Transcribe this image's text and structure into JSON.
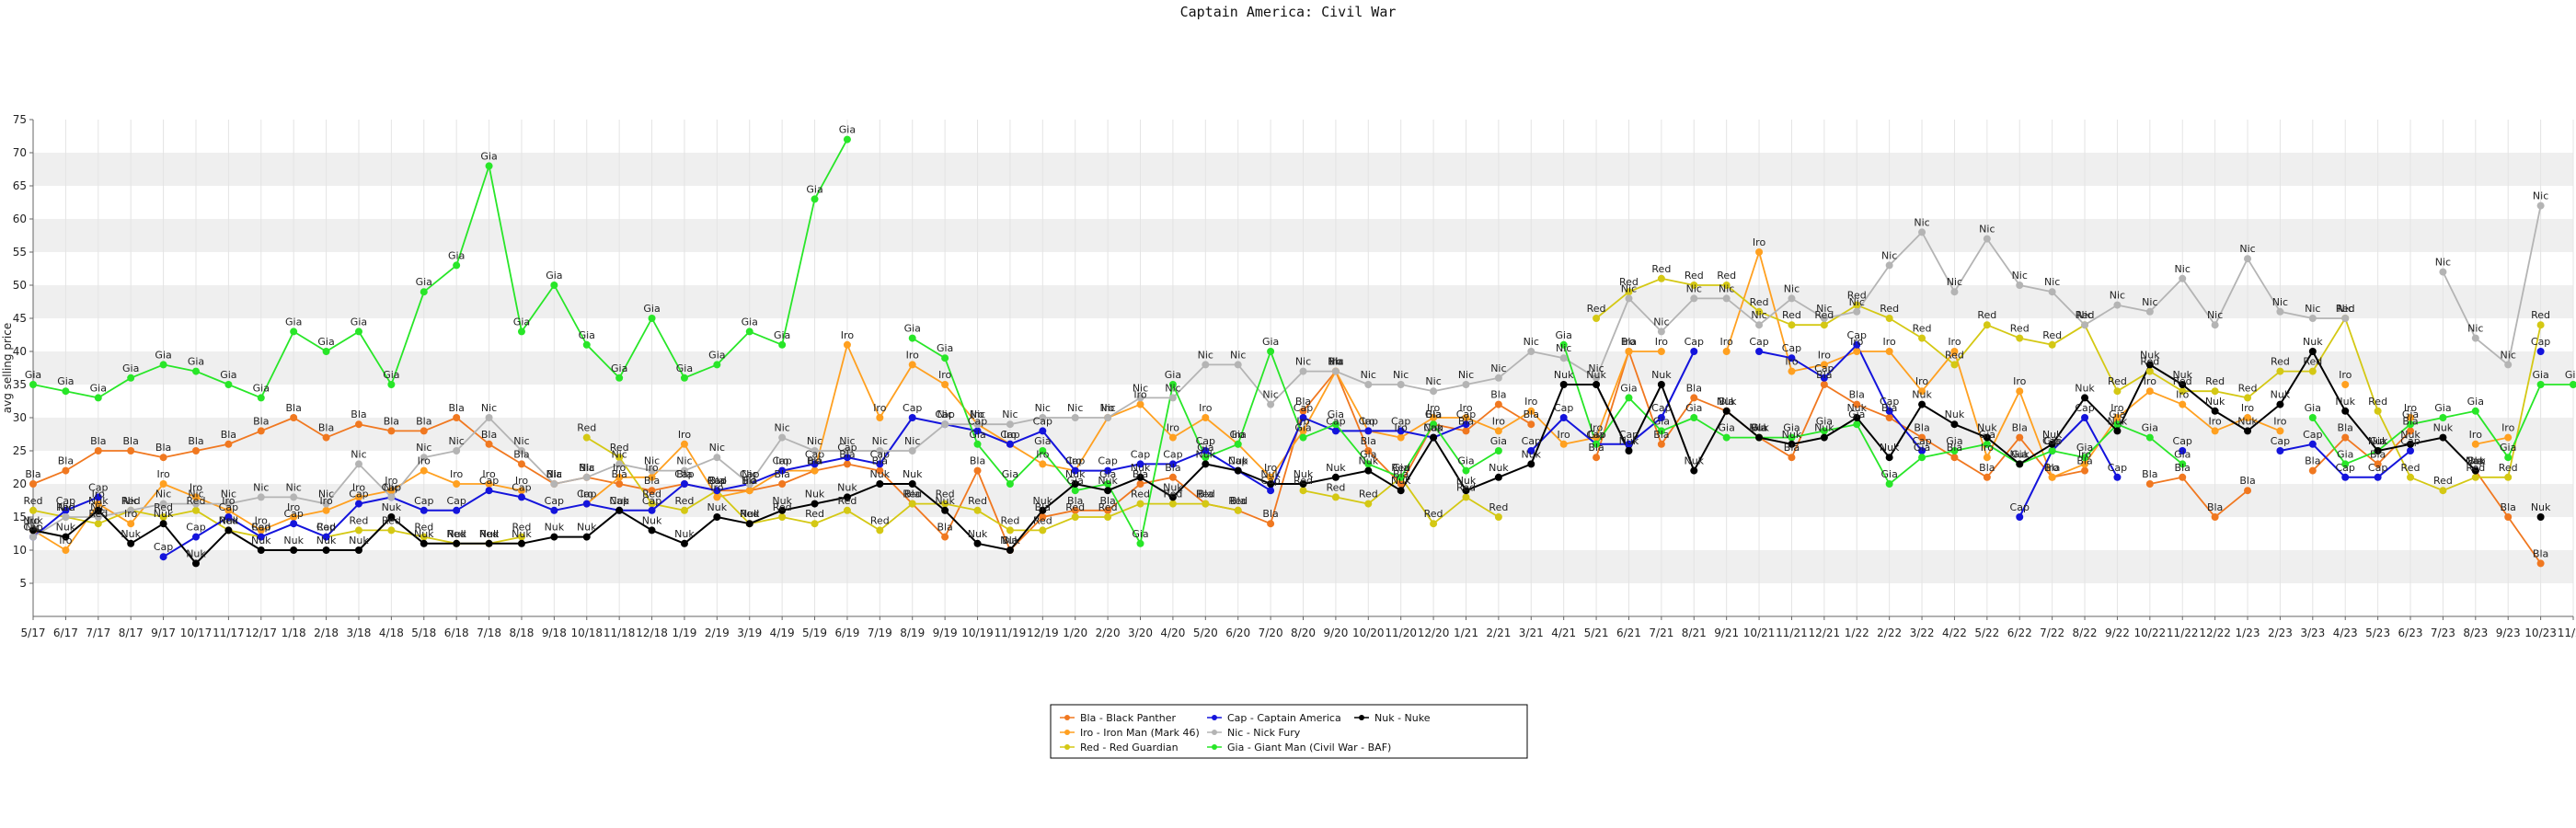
{
  "chart_data": {
    "type": "line",
    "title": "Captain America: Civil War",
    "ylabel": "avg selling price",
    "xlabel": "",
    "ylim": [
      0,
      75
    ],
    "yticks": [
      5,
      10,
      15,
      20,
      25,
      30,
      35,
      40,
      45,
      50,
      55,
      60,
      65,
      70,
      75
    ],
    "grid": "horizontal bands",
    "legend_position": "bottom-center",
    "x": [
      "5/17",
      "6/17",
      "7/17",
      "8/17",
      "9/17",
      "10/17",
      "11/17",
      "12/17",
      "1/18",
      "2/18",
      "3/18",
      "4/18",
      "5/18",
      "6/18",
      "7/18",
      "8/18",
      "9/18",
      "10/18",
      "11/18",
      "12/18",
      "1/19",
      "2/19",
      "3/19",
      "4/19",
      "5/19",
      "6/19",
      "7/19",
      "8/19",
      "9/19",
      "10/19",
      "11/19",
      "12/19",
      "1/20",
      "2/20",
      "3/20",
      "4/20",
      "5/20",
      "6/20",
      "7/20",
      "8/20",
      "9/20",
      "10/20",
      "11/20",
      "12/20",
      "1/21",
      "2/21",
      "3/21",
      "4/21",
      "5/21",
      "6/21",
      "7/21",
      "8/21",
      "9/21",
      "10/21",
      "11/21",
      "12/21",
      "1/22",
      "2/22",
      "3/22",
      "4/22",
      "5/22",
      "6/22",
      "7/22",
      "8/22",
      "9/22",
      "10/22",
      "11/22",
      "12/22",
      "1/23",
      "2/23",
      "3/23",
      "4/23",
      "5/23",
      "6/23",
      "7/23",
      "8/23",
      "9/23",
      "10/23",
      "11/23"
    ],
    "series": [
      {
        "short": "Bla",
        "name": "Bla - Black Panther",
        "color": "#f07820",
        "values": [
          20,
          22,
          25,
          25,
          24,
          25,
          26,
          28,
          30,
          27,
          29,
          28,
          28,
          30,
          26,
          23,
          20,
          21,
          20,
          19,
          20,
          19,
          19,
          20,
          22,
          23,
          22,
          17,
          12,
          22,
          10,
          15,
          16,
          16,
          20,
          21,
          17,
          16,
          14,
          31,
          37,
          25,
          20,
          29,
          28,
          32,
          29,
          null,
          24,
          40,
          26,
          33,
          31,
          27,
          24,
          35,
          32,
          30,
          27,
          24,
          21,
          27,
          21,
          22,
          null,
          20,
          21,
          15,
          19,
          null,
          22,
          27,
          23,
          28,
          null,
          22,
          15,
          8,
          null
        ]
      },
      {
        "short": "Iro",
        "name": "Iro - Iron Man (Mark 46)",
        "color": "#ffa020",
        "values": [
          13,
          10,
          17,
          14,
          20,
          18,
          16,
          13,
          15,
          16,
          18,
          19,
          22,
          20,
          20,
          19,
          null,
          17,
          21,
          21,
          26,
          18,
          19,
          22,
          22,
          41,
          30,
          38,
          35,
          29,
          26,
          23,
          22,
          30,
          32,
          27,
          30,
          26,
          21,
          28,
          37,
          28,
          27,
          30,
          30,
          28,
          31,
          26,
          27,
          40,
          40,
          null,
          40,
          55,
          37,
          38,
          40,
          40,
          34,
          40,
          24,
          34,
          21,
          23,
          30,
          34,
          32,
          28,
          30,
          28,
          null,
          35,
          null,
          30,
          null,
          26,
          27,
          null,
          null
        ]
      },
      {
        "short": "Red",
        "name": "Red - Red Guardian",
        "color": "#d4c814",
        "values": [
          16,
          15,
          14,
          16,
          15,
          16,
          13,
          12,
          null,
          12,
          13,
          13,
          12,
          11,
          11,
          12,
          null,
          27,
          24,
          17,
          16,
          19,
          14,
          15,
          14,
          16,
          13,
          17,
          17,
          16,
          13,
          13,
          15,
          15,
          17,
          17,
          17,
          16,
          null,
          19,
          18,
          17,
          21,
          14,
          18,
          15,
          null,
          null,
          45,
          49,
          51,
          50,
          50,
          46,
          44,
          44,
          47,
          45,
          42,
          38,
          44,
          42,
          41,
          44,
          34,
          37,
          34,
          34,
          33,
          37,
          37,
          45,
          31,
          21,
          19,
          21,
          21,
          44,
          null
        ]
      },
      {
        "short": "Cap",
        "name": "Cap - Captain America",
        "color": "#1414dc",
        "values": [
          12,
          16,
          18,
          null,
          9,
          12,
          15,
          12,
          14,
          12,
          17,
          18,
          16,
          16,
          19,
          18,
          16,
          17,
          16,
          16,
          20,
          19,
          20,
          22,
          23,
          24,
          23,
          30,
          29,
          28,
          26,
          28,
          22,
          22,
          23,
          23,
          25,
          22,
          19,
          30,
          28,
          28,
          28,
          27,
          29,
          null,
          25,
          30,
          26,
          26,
          30,
          40,
          null,
          40,
          39,
          36,
          41,
          31,
          25,
          null,
          null,
          15,
          25,
          30,
          21,
          null,
          25,
          null,
          null,
          25,
          26,
          21,
          21,
          25,
          null,
          22,
          null,
          40,
          null
        ]
      },
      {
        "short": "Nic",
        "name": "Nic - Nick Fury",
        "color": "#b4b4b4",
        "values": [
          12,
          15,
          15,
          16,
          17,
          17,
          17,
          18,
          18,
          17,
          23,
          18,
          24,
          25,
          30,
          25,
          20,
          21,
          23,
          22,
          22,
          24,
          20,
          27,
          25,
          25,
          25,
          25,
          29,
          29,
          29,
          30,
          30,
          30,
          33,
          33,
          38,
          38,
          32,
          37,
          37,
          35,
          35,
          34,
          35,
          36,
          40,
          39,
          36,
          48,
          43,
          48,
          48,
          44,
          48,
          45,
          46,
          53,
          58,
          49,
          57,
          50,
          49,
          44,
          47,
          46,
          51,
          44,
          54,
          46,
          45,
          45,
          null,
          null,
          52,
          42,
          38,
          62,
          null
        ]
      },
      {
        "short": "Gia",
        "name": "Gia - Giant Man (Civil War - BAF)",
        "color": "#28e628",
        "values": [
          35,
          34,
          33,
          36,
          38,
          37,
          35,
          33,
          43,
          40,
          43,
          35,
          49,
          53,
          68,
          43,
          50,
          41,
          36,
          45,
          36,
          38,
          43,
          41,
          63,
          72,
          null,
          42,
          39,
          26,
          20,
          25,
          19,
          20,
          11,
          35,
          24,
          26,
          40,
          27,
          29,
          23,
          21,
          29,
          22,
          25,
          null,
          41,
          26,
          33,
          28,
          30,
          27,
          27,
          27,
          28,
          29,
          20,
          24,
          25,
          26,
          23,
          25,
          24,
          29,
          27,
          23,
          null,
          null,
          null,
          30,
          23,
          25,
          29,
          30,
          31,
          24,
          35,
          35
        ]
      },
      {
        "short": "Nuk",
        "name": "Nuk - Nuke",
        "color": "#000000",
        "values": [
          13,
          12,
          16,
          11,
          14,
          8,
          13,
          10,
          10,
          10,
          10,
          15,
          11,
          11,
          11,
          11,
          12,
          12,
          16,
          13,
          11,
          15,
          14,
          16,
          17,
          18,
          20,
          20,
          16,
          11,
          10,
          16,
          20,
          19,
          21,
          18,
          23,
          22,
          20,
          20,
          21,
          22,
          19,
          27,
          19,
          21,
          23,
          35,
          35,
          25,
          35,
          22,
          31,
          27,
          26,
          27,
          30,
          24,
          32,
          29,
          27,
          23,
          26,
          33,
          28,
          38,
          35,
          31,
          28,
          32,
          40,
          31,
          25,
          26,
          27,
          22,
          null,
          15,
          null
        ]
      }
    ]
  }
}
